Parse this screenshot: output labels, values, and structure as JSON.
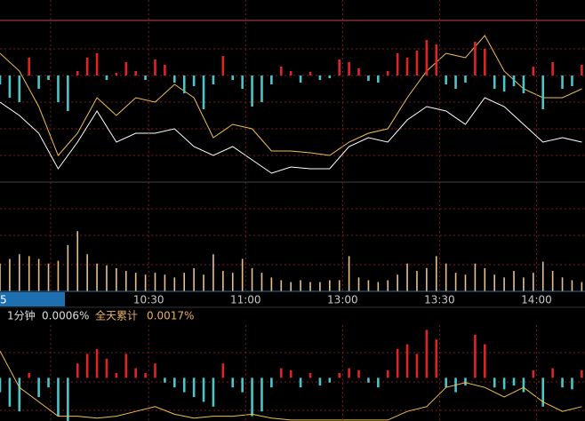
{
  "chart_data": [
    {
      "type": "line",
      "xlim": [
        14,
        195
      ],
      "ylim": [
        0,
        205
      ],
      "x": [
        14,
        20,
        26,
        32,
        38,
        44,
        50,
        56,
        62,
        68,
        74,
        80,
        86,
        92,
        98,
        104,
        110,
        116,
        122,
        128,
        134,
        140,
        146,
        152,
        158,
        164,
        170,
        176,
        182,
        188,
        194
      ],
      "series": [
        {
          "color": "#ffffff",
          "values": [
            90,
            75,
            55,
            15,
            45,
            80,
            45,
            55,
            55,
            60,
            40,
            30,
            40,
            25,
            10,
            17,
            15,
            15,
            40,
            50,
            45,
            70,
            85,
            80,
            65,
            95,
            85,
            65,
            45,
            50,
            45
          ]
        },
        {
          "color": "#f0c050",
          "values": [
            145,
            125,
            85,
            30,
            55,
            95,
            75,
            95,
            90,
            110,
            95,
            50,
            65,
            60,
            35,
            35,
            33,
            30,
            45,
            55,
            60,
            95,
            125,
            145,
            140,
            165,
            125,
            105,
            95,
            95,
            105
          ]
        }
      ]
    },
    {
      "type": "bar",
      "xlim": [
        14,
        195
      ],
      "ylim": [
        -45,
        45
      ],
      "up_color": "#e02424",
      "down_color": "#4cc4c8",
      "x": [
        14,
        17,
        20,
        23,
        26,
        29,
        32,
        35,
        38,
        41,
        44,
        47,
        50,
        53,
        56,
        59,
        62,
        65,
        68,
        71,
        74,
        77,
        80,
        83,
        86,
        89,
        92,
        95,
        98,
        101,
        104,
        107,
        110,
        113,
        116,
        119,
        122,
        125,
        128,
        131,
        134,
        137,
        140,
        143,
        146,
        149,
        152,
        155,
        158,
        161,
        164,
        167,
        170,
        173,
        176,
        179,
        182,
        185,
        188,
        191,
        194
      ],
      "values": [
        -10,
        -25,
        -30,
        20,
        -15,
        -5,
        -30,
        -40,
        5,
        20,
        25,
        -5,
        3,
        15,
        5,
        -5,
        18,
        12,
        -8,
        -20,
        -12,
        -38,
        -10,
        22,
        -5,
        -15,
        -35,
        -30,
        -10,
        10,
        5,
        -8,
        4,
        -5,
        -3,
        18,
        15,
        8,
        -6,
        -8,
        5,
        25,
        20,
        28,
        40,
        35,
        -10,
        -15,
        -8,
        38,
        30,
        -15,
        -18,
        -12,
        -20,
        10,
        -38,
        15,
        -15,
        -12,
        12
      ]
    },
    {
      "type": "bar",
      "xlim": [
        14,
        195
      ],
      "ylim": [
        0,
        70
      ],
      "color": "#e6c08c",
      "x": [
        14,
        17,
        20,
        23,
        26,
        29,
        32,
        35,
        38,
        41,
        44,
        47,
        50,
        53,
        56,
        59,
        62,
        65,
        68,
        71,
        74,
        77,
        80,
        83,
        86,
        89,
        92,
        95,
        98,
        101,
        104,
        107,
        110,
        113,
        116,
        119,
        122,
        125,
        128,
        131,
        134,
        137,
        140,
        143,
        146,
        149,
        152,
        155,
        158,
        161,
        164,
        167,
        170,
        173,
        176,
        179,
        182,
        185,
        188,
        191,
        194
      ],
      "values": [
        30,
        35,
        40,
        38,
        35,
        30,
        33,
        50,
        65,
        40,
        30,
        28,
        25,
        22,
        20,
        18,
        20,
        18,
        15,
        20,
        25,
        18,
        40,
        22,
        20,
        35,
        25,
        20,
        15,
        12,
        10,
        12,
        10,
        10,
        12,
        12,
        38,
        15,
        12,
        10,
        12,
        18,
        30,
        22,
        25,
        38,
        30,
        20,
        18,
        30,
        25,
        18,
        15,
        22,
        15,
        20,
        32,
        22,
        15,
        12,
        10
      ],
      "xticks": [
        {
          "value": 60,
          "label": "10:30"
        },
        {
          "value": 90,
          "label": "11:00"
        },
        {
          "value": 120,
          "label": "13:00"
        },
        {
          "value": 150,
          "label": "13:30"
        },
        {
          "value": 180,
          "label": "14:00"
        }
      ]
    },
    {
      "type": "bar",
      "xlim": [
        14,
        195
      ],
      "ylim": [
        -45,
        55
      ],
      "up_color": "#e02424",
      "down_color": "#4cc4c8",
      "x": [
        14,
        17,
        20,
        23,
        26,
        29,
        32,
        35,
        38,
        41,
        44,
        47,
        50,
        53,
        56,
        59,
        62,
        65,
        68,
        71,
        74,
        77,
        80,
        83,
        86,
        89,
        92,
        95,
        98,
        101,
        104,
        107,
        110,
        113,
        116,
        119,
        122,
        125,
        128,
        131,
        134,
        137,
        140,
        143,
        146,
        149,
        152,
        155,
        158,
        161,
        164,
        167,
        170,
        173,
        176,
        179,
        182,
        185,
        188,
        191,
        194
      ],
      "values": [
        -15,
        -30,
        -35,
        5,
        -20,
        -10,
        -40,
        -45,
        15,
        25,
        30,
        20,
        5,
        25,
        10,
        5,
        15,
        -5,
        -10,
        -15,
        -20,
        -25,
        -30,
        15,
        -10,
        -15,
        -40,
        -35,
        -10,
        10,
        8,
        -10,
        5,
        -8,
        -5,
        5,
        10,
        8,
        -5,
        -10,
        8,
        30,
        35,
        25,
        50,
        40,
        -10,
        -15,
        -8,
        45,
        35,
        -10,
        -12,
        -8,
        -15,
        8,
        -30,
        10,
        -10,
        -12,
        8
      ]
    },
    {
      "type": "line",
      "xlim": [
        14,
        195
      ],
      "ylim": [
        -45,
        55
      ],
      "x": [
        14,
        20,
        26,
        32,
        38,
        44,
        50,
        56,
        62,
        68,
        74,
        80,
        86,
        92,
        98,
        104,
        110,
        116,
        122,
        128,
        134,
        140,
        146,
        152,
        158,
        164,
        170,
        176,
        182,
        188,
        194
      ],
      "series": [
        {
          "color": "#f0c050",
          "values": [
            28,
            -10,
            -25,
            -40,
            -40,
            -42,
            -40,
            -35,
            -30,
            -38,
            -42,
            -40,
            -40,
            -38,
            -42,
            -44,
            -44,
            -44,
            -44,
            -44,
            -44,
            -35,
            -30,
            -10,
            -5,
            -10,
            -20,
            -10,
            -25,
            -35,
            -30
          ]
        }
      ]
    }
  ],
  "cursor_label": "5",
  "status": {
    "period": "1分钟",
    "period_value": "0.0006%",
    "total_label": "全天累计",
    "total_value": "0.0017%"
  }
}
